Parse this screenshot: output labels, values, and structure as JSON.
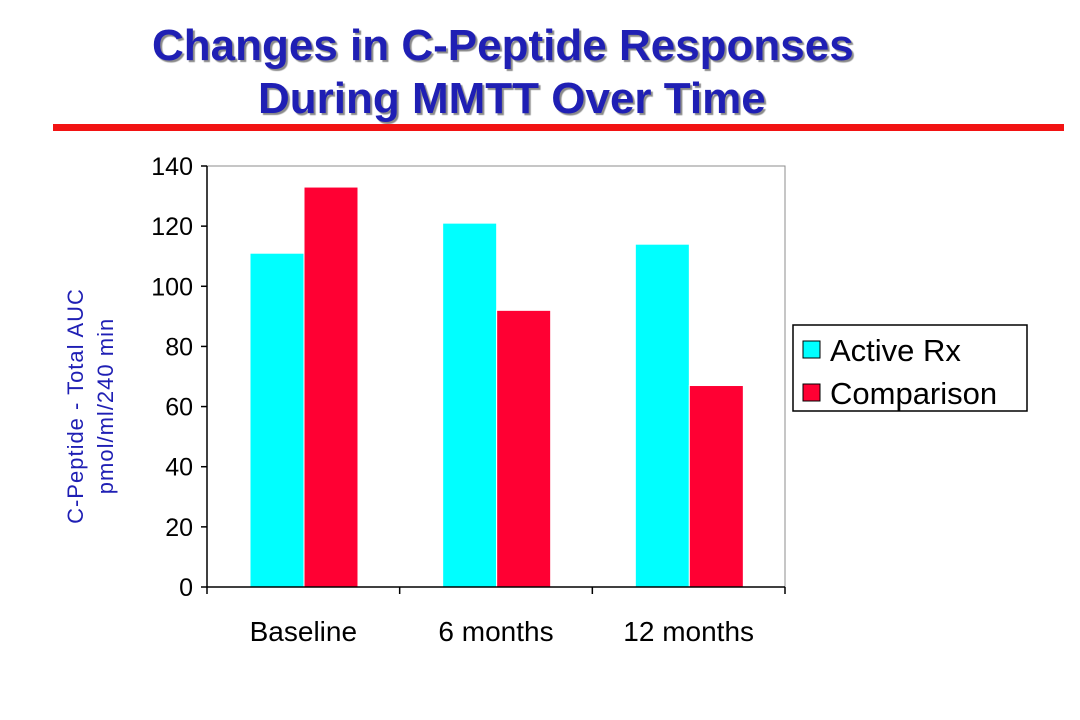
{
  "title": {
    "line1": "Changes in C-Peptide Responses",
    "line2": "During MMTT Over Time",
    "color": "#1f1fb4",
    "rule_color": "#f21313"
  },
  "chart_data": {
    "type": "bar",
    "categories": [
      "Baseline",
      "6 months",
      "12 months"
    ],
    "series": [
      {
        "name": "Active Rx",
        "values": [
          111,
          121,
          114
        ],
        "color": "#00ffff"
      },
      {
        "name": "Comparison",
        "values": [
          133,
          92,
          67
        ],
        "color": "#ff0033"
      }
    ],
    "ylabel_line1": "C-Peptide - Total AUC",
    "ylabel_line2": "pmol/ml/240 min",
    "ylabel_color": "#1f1fb4",
    "ylim": [
      0,
      140
    ],
    "yticks": [
      0,
      20,
      40,
      60,
      80,
      100,
      120,
      140
    ],
    "grid": false,
    "legend_position": "right"
  }
}
